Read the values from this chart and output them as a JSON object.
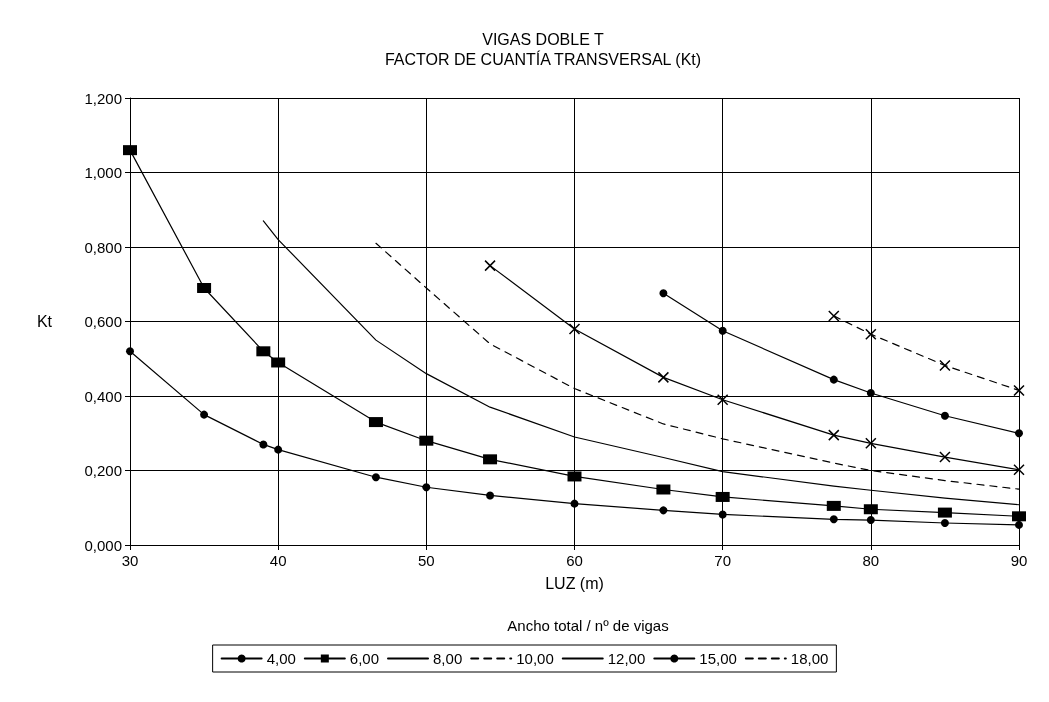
{
  "chart_data": {
    "type": "line",
    "title": "VIGAS DOBLE T",
    "subtitle": "FACTOR DE CUANTÍA TRANSVERSAL (Kt)",
    "xlabel": "LUZ (m)",
    "ylabel": "Kt",
    "legend_title": "Ancho total / nº de vigas",
    "xlim": [
      30,
      90
    ],
    "xticks": [
      30,
      40,
      50,
      60,
      70,
      80,
      90
    ],
    "ylim": [
      0,
      1.2
    ],
    "yticks": [
      {
        "value": 0,
        "label": "0,000"
      },
      {
        "value": 0.2,
        "label": "0,200"
      },
      {
        "value": 0.4,
        "label": "0,400"
      },
      {
        "value": 0.6,
        "label": "0,600"
      },
      {
        "value": 0.8,
        "label": "0,800"
      },
      {
        "value": 1.0,
        "label": "1,000"
      },
      {
        "value": 1.2,
        "label": "1,200"
      }
    ],
    "grid": true,
    "legend": "bottom",
    "series": [
      {
        "name": "4,00",
        "color": "#000000",
        "marker": "circle",
        "line_style": "solid",
        "x": [
          30,
          35,
          39,
          40,
          46.6,
          50,
          54.3,
          60,
          66,
          70,
          77.5,
          80,
          85,
          90
        ],
        "values": [
          0.52,
          0.35,
          0.27,
          0.256,
          0.182,
          0.155,
          0.133,
          0.111,
          0.093,
          0.082,
          0.069,
          0.067,
          0.059,
          0.054
        ]
      },
      {
        "name": "6,00",
        "color": "#000000",
        "marker": "square",
        "line_style": "solid",
        "x": [
          30,
          35,
          39,
          40,
          46.6,
          50,
          54.3,
          60,
          66,
          70,
          77.5,
          80,
          85,
          90
        ],
        "values": [
          1.06,
          0.69,
          0.52,
          0.49,
          0.33,
          0.28,
          0.23,
          0.184,
          0.149,
          0.129,
          0.105,
          0.096,
          0.087,
          0.077
        ]
      },
      {
        "name": "8,00",
        "color": "#000000",
        "marker": "none",
        "line_style": "solid",
        "x": [
          39,
          40,
          46.6,
          50,
          54.3,
          60,
          66,
          70,
          77.5,
          80,
          85,
          90
        ],
        "values": [
          0.87,
          0.82,
          0.55,
          0.46,
          0.37,
          0.29,
          0.235,
          0.197,
          0.158,
          0.147,
          0.126,
          0.108
        ]
      },
      {
        "name": "10,00",
        "color": "#000000",
        "marker": "none",
        "line_style": "dashed",
        "x": [
          46.6,
          50,
          54.3,
          60,
          66,
          70,
          77.5,
          80,
          85,
          90
        ],
        "values": [
          0.81,
          0.69,
          0.54,
          0.42,
          0.325,
          0.285,
          0.22,
          0.2,
          0.173,
          0.15
        ]
      },
      {
        "name": "12,00",
        "color": "#000000",
        "marker": "cross",
        "line_style": "solid",
        "x": [
          54.3,
          60,
          66,
          70,
          77.5,
          80,
          85,
          90
        ],
        "values": [
          0.75,
          0.58,
          0.45,
          0.39,
          0.295,
          0.273,
          0.236,
          0.202
        ]
      },
      {
        "name": "15,00",
        "color": "#000000",
        "marker": "circle",
        "line_style": "solid",
        "x": [
          66,
          70,
          77.5,
          80,
          85,
          90
        ],
        "values": [
          0.676,
          0.575,
          0.444,
          0.408,
          0.347,
          0.3
        ]
      },
      {
        "name": "18,00",
        "color": "#000000",
        "marker": "cross",
        "line_style": "dashed",
        "x": [
          77.5,
          80,
          85,
          90
        ],
        "values": [
          0.615,
          0.566,
          0.482,
          0.415
        ]
      }
    ]
  }
}
